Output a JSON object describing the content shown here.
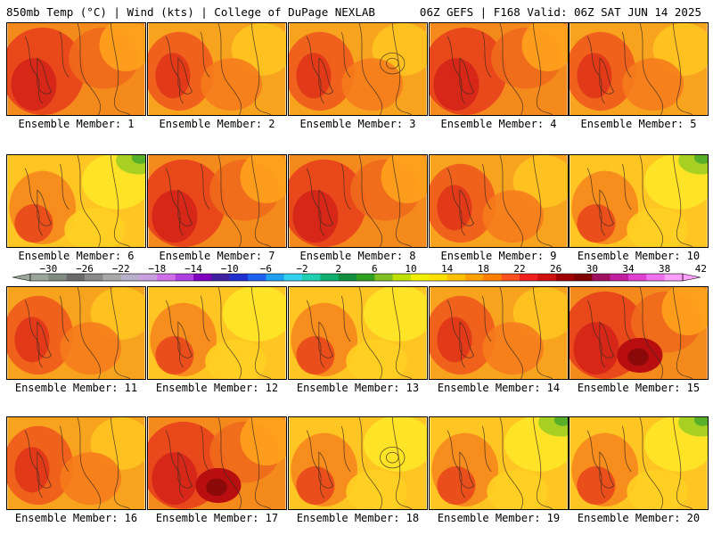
{
  "header": {
    "left": "850mb Temp (°C) | Wind (kts) | College of DuPage NEXLAB",
    "right": "06Z GEFS | F168 Valid: 06Z SAT JUN 14 2025"
  },
  "panels": [
    {
      "label": "Ensemble Member: 1",
      "scheme": "hot",
      "accent": ""
    },
    {
      "label": "Ensemble Member: 2",
      "scheme": "warm",
      "accent": ""
    },
    {
      "label": "Ensemble Member: 3",
      "scheme": "warm",
      "accent": "ring"
    },
    {
      "label": "Ensemble Member: 4",
      "scheme": "hot",
      "accent": ""
    },
    {
      "label": "Ensemble Member: 5",
      "scheme": "warm",
      "accent": ""
    },
    {
      "label": "Ensemble Member: 6",
      "scheme": "mild",
      "accent": "green"
    },
    {
      "label": "Ensemble Member: 7",
      "scheme": "hot",
      "accent": ""
    },
    {
      "label": "Ensemble Member: 8",
      "scheme": "hot",
      "accent": ""
    },
    {
      "label": "Ensemble Member: 9",
      "scheme": "warm",
      "accent": ""
    },
    {
      "label": "Ensemble Member: 10",
      "scheme": "mild",
      "accent": "green"
    },
    {
      "label": "Ensemble Member: 11",
      "scheme": "warm",
      "accent": ""
    },
    {
      "label": "Ensemble Member: 12",
      "scheme": "mild",
      "accent": ""
    },
    {
      "label": "Ensemble Member: 13",
      "scheme": "mild",
      "accent": ""
    },
    {
      "label": "Ensemble Member: 14",
      "scheme": "warm",
      "accent": ""
    },
    {
      "label": "Ensemble Member: 15",
      "scheme": "hot",
      "accent": "dark"
    },
    {
      "label": "Ensemble Member: 16",
      "scheme": "warm",
      "accent": ""
    },
    {
      "label": "Ensemble Member: 17",
      "scheme": "hot",
      "accent": "dark"
    },
    {
      "label": "Ensemble Member: 18",
      "scheme": "mild",
      "accent": "ring"
    },
    {
      "label": "Ensemble Member: 19",
      "scheme": "mild",
      "accent": "green"
    },
    {
      "label": "Ensemble Member: 20",
      "scheme": "mild",
      "accent": "green"
    }
  ],
  "colorbar": {
    "tick_labels": [
      "-30",
      "-26",
      "-22",
      "-18",
      "-14",
      "-10",
      "-6",
      "-2",
      "2",
      "6",
      "10",
      "14",
      "18",
      "22",
      "26",
      "30",
      "34",
      "38",
      "42"
    ],
    "colors": [
      "#9aa69a",
      "#7f8c7f",
      "#6b6b6b",
      "#8a8a8a",
      "#a8a8a8",
      "#b8b0c8",
      "#c8a0e0",
      "#d070e8",
      "#b040e0",
      "#8000c0",
      "#4020a0",
      "#2030d0",
      "#2060f0",
      "#20a0f0",
      "#30d0f0",
      "#20d0b0",
      "#10b070",
      "#109040",
      "#30a020",
      "#80c020",
      "#c0e000",
      "#f0f000",
      "#ffe000",
      "#ffc000",
      "#ffa000",
      "#ff8000",
      "#ff5020",
      "#f02020",
      "#d01010",
      "#a00000",
      "#800000",
      "#a01060",
      "#c020a0",
      "#e040d0",
      "#f070f0",
      "#ffa0ff"
    ]
  }
}
